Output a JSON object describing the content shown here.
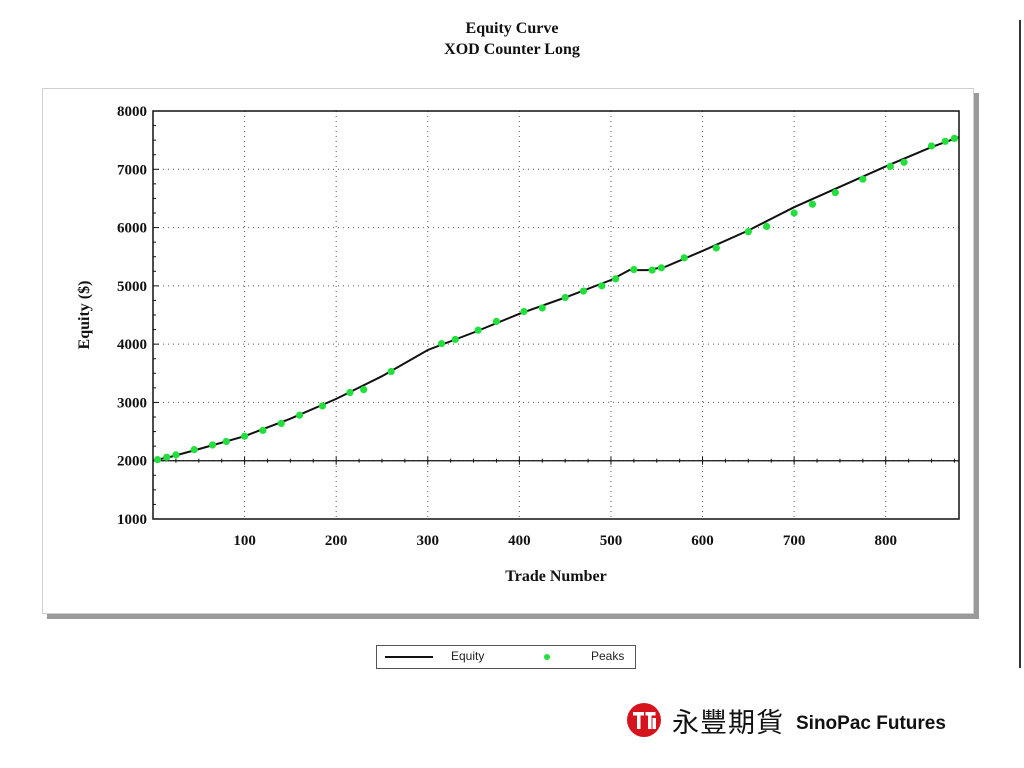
{
  "chart_data": {
    "type": "line",
    "title": "Equity Curve",
    "subtitle": "XOD Counter Long",
    "xlabel": "Trade Number",
    "ylabel": "Equity ($)",
    "xlim": [
      0,
      880
    ],
    "ylim": [
      1000,
      8000
    ],
    "xticks": [
      100,
      200,
      300,
      400,
      500,
      600,
      700,
      800
    ],
    "yticks": [
      1000,
      2000,
      3000,
      4000,
      5000,
      6000,
      7000,
      8000
    ],
    "grid": true,
    "legend_position": "bottom",
    "series": [
      {
        "name": "Equity",
        "color": "#111111",
        "x": [
          0,
          20,
          50,
          100,
          150,
          200,
          250,
          300,
          350,
          400,
          450,
          500,
          520,
          540,
          560,
          600,
          650,
          700,
          750,
          800,
          850,
          880
        ],
        "y": [
          2000,
          2070,
          2200,
          2420,
          2720,
          3060,
          3450,
          3900,
          4200,
          4520,
          4800,
          5100,
          5270,
          5270,
          5330,
          5600,
          5950,
          6350,
          6700,
          7050,
          7380,
          7550
        ]
      },
      {
        "name": "Peaks",
        "color": "#22e03c",
        "x": [
          5,
          15,
          25,
          45,
          65,
          80,
          100,
          120,
          140,
          160,
          185,
          215,
          230,
          260,
          315,
          330,
          355,
          375,
          405,
          425,
          450,
          470,
          490,
          505,
          525,
          545,
          555,
          580,
          615,
          650,
          670,
          700,
          720,
          745,
          775,
          805,
          820,
          850,
          865,
          875
        ],
        "y": [
          2020,
          2060,
          2100,
          2190,
          2270,
          2330,
          2420,
          2520,
          2640,
          2780,
          2940,
          3170,
          3220,
          3530,
          4010,
          4080,
          4240,
          4390,
          4560,
          4620,
          4800,
          4910,
          5000,
          5120,
          5280,
          5270,
          5310,
          5480,
          5650,
          5930,
          6020,
          6250,
          6400,
          6600,
          6830,
          7050,
          7120,
          7400,
          7480,
          7530
        ]
      }
    ]
  },
  "legend": {
    "equity": "Equity",
    "peaks": "Peaks"
  },
  "brand": {
    "chinese": "永豐期貨",
    "english": "SinoPac Futures",
    "logo_color": "#d5141e"
  }
}
